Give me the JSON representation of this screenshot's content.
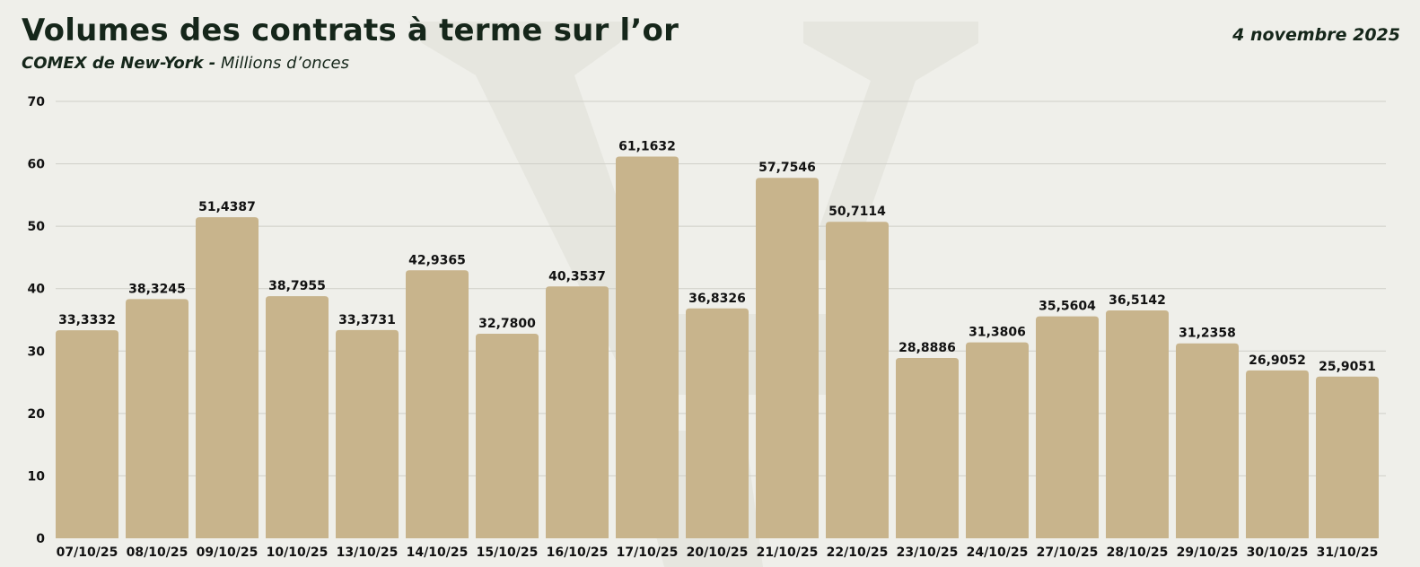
{
  "header": {
    "title": "Volumes des contrats à terme sur l’or",
    "source": "COMEX de New-York -",
    "unit": "Millions d’onces",
    "date": "4 novembre 2025"
  },
  "colors": {
    "bar": "#c8b48c",
    "grid": "#cfcfc8",
    "background": "#efefea",
    "text": "#15261a"
  },
  "chart_data": {
    "type": "bar",
    "title": "Volumes des contrats à terme sur l’or",
    "subtitle": "COMEX de New-York - Millions d’onces",
    "xlabel": "",
    "ylabel": "",
    "ylim": [
      0,
      70
    ],
    "yticks": [
      0,
      10,
      20,
      30,
      40,
      50,
      60,
      70
    ],
    "grid": true,
    "legend": "none",
    "categories": [
      "07/10/25",
      "08/10/25",
      "09/10/25",
      "10/10/25",
      "13/10/25",
      "14/10/25",
      "15/10/25",
      "16/10/25",
      "17/10/25",
      "20/10/25",
      "21/10/25",
      "22/10/25",
      "23/10/25",
      "24/10/25",
      "27/10/25",
      "28/10/25",
      "29/10/25",
      "30/10/25",
      "31/10/25"
    ],
    "values": [
      33.3332,
      38.3245,
      51.4387,
      38.7955,
      33.3731,
      42.9365,
      32.78,
      40.3537,
      61.1632,
      36.8326,
      57.7546,
      50.7114,
      28.8886,
      31.3806,
      35.5604,
      36.5142,
      31.2358,
      26.9052,
      25.9051
    ],
    "value_labels": [
      "33,3332",
      "38,3245",
      "51,4387",
      "38,7955",
      "33,3731",
      "42,9365",
      "32,7800",
      "40,3537",
      "61,1632",
      "36,8326",
      "57,7546",
      "50,7114",
      "28,8886",
      "31,3806",
      "35,5604",
      "36,5142",
      "31,2358",
      "26,9052",
      "25,9051"
    ]
  }
}
